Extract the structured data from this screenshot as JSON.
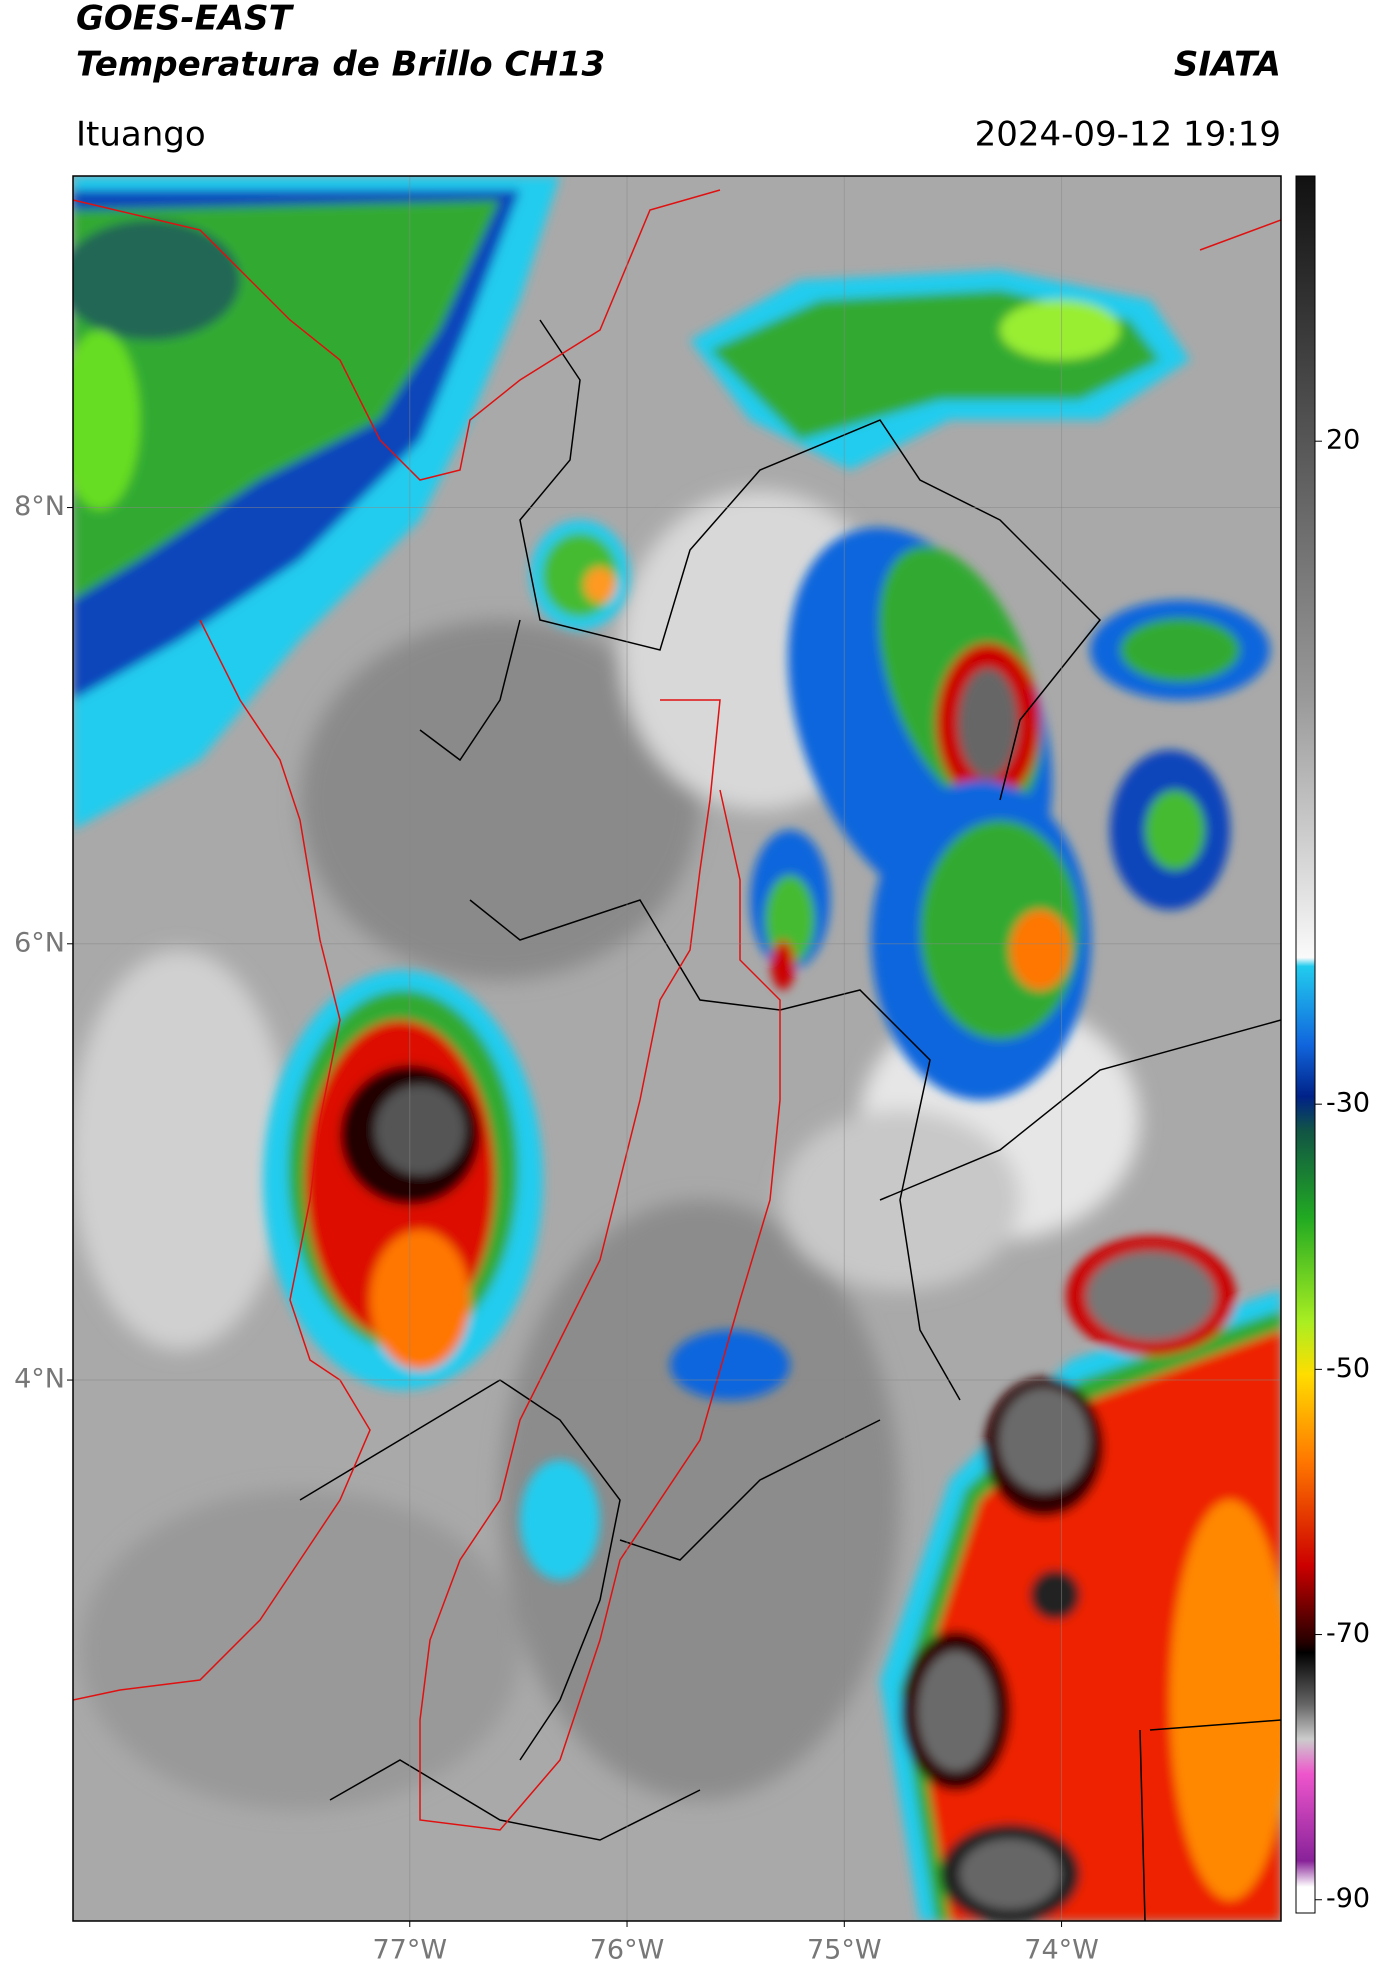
{
  "header": {
    "title": "GOES-EAST",
    "subtitle": "Temperatura de Brillo CH13",
    "org": "SIATA",
    "location": "Ituango",
    "datetime": "2024-09-12 19:19"
  },
  "map": {
    "lonlim": [
      -78.55,
      -72.99
    ],
    "latlim": [
      1.52,
      9.52
    ],
    "lonticks": [
      {
        "value": -77,
        "label": "77°W"
      },
      {
        "value": -76,
        "label": "76°W"
      },
      {
        "value": -75,
        "label": "75°W"
      },
      {
        "value": -74,
        "label": "74°W"
      }
    ],
    "latticks": [
      {
        "value": 8,
        "label": "8°N"
      },
      {
        "value": 6,
        "label": "6°N"
      },
      {
        "value": 4,
        "label": "4°N"
      }
    ]
  },
  "colorbar": {
    "lim": [
      -91,
      40
    ],
    "ticks": [
      20,
      -30,
      -50,
      -70,
      -90
    ]
  }
}
